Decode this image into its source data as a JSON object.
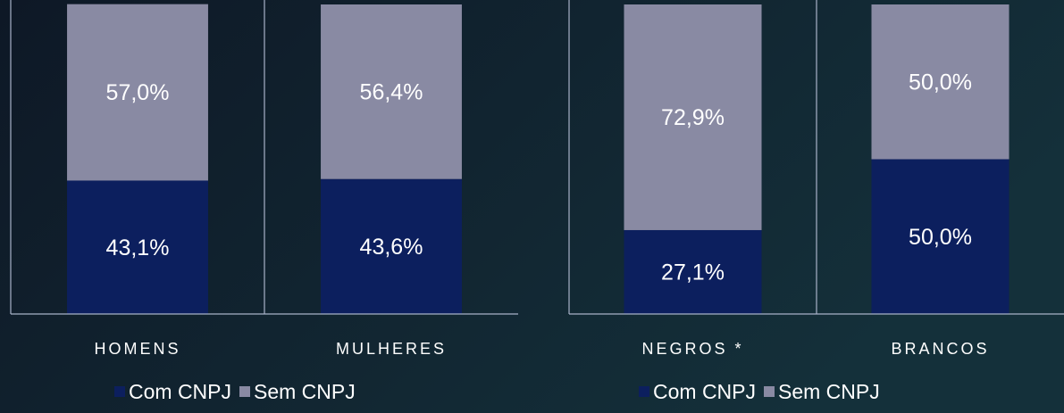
{
  "chart_data": [
    {
      "type": "bar",
      "stacked": true,
      "legend": "bottom",
      "categories": [
        "HOMENS",
        "MULHERES"
      ],
      "ylim": [
        0,
        100
      ],
      "series": [
        {
          "name": "Com CNPJ",
          "color": "#0c1f5e",
          "values": [
            43.1,
            43.6
          ],
          "value_labels": [
            "43,1%",
            "43,6%"
          ]
        },
        {
          "name": "Sem CNPJ",
          "color": "#898aa3",
          "values": [
            57.0,
            56.4
          ],
          "value_labels": [
            "57,0%",
            "56,4%"
          ]
        }
      ]
    },
    {
      "type": "bar",
      "stacked": true,
      "legend": "bottom",
      "categories": [
        "NEGROS *",
        "BRANCOS"
      ],
      "ylim": [
        0,
        100
      ],
      "series": [
        {
          "name": "Com CNPJ",
          "color": "#0c1f5e",
          "values": [
            27.1,
            50.0
          ],
          "value_labels": [
            "27,1%",
            "50,0%"
          ]
        },
        {
          "name": "Sem CNPJ",
          "color": "#898aa3",
          "values": [
            72.9,
            50.0
          ],
          "value_labels": [
            "72,9%",
            "50,0%"
          ]
        }
      ]
    }
  ]
}
